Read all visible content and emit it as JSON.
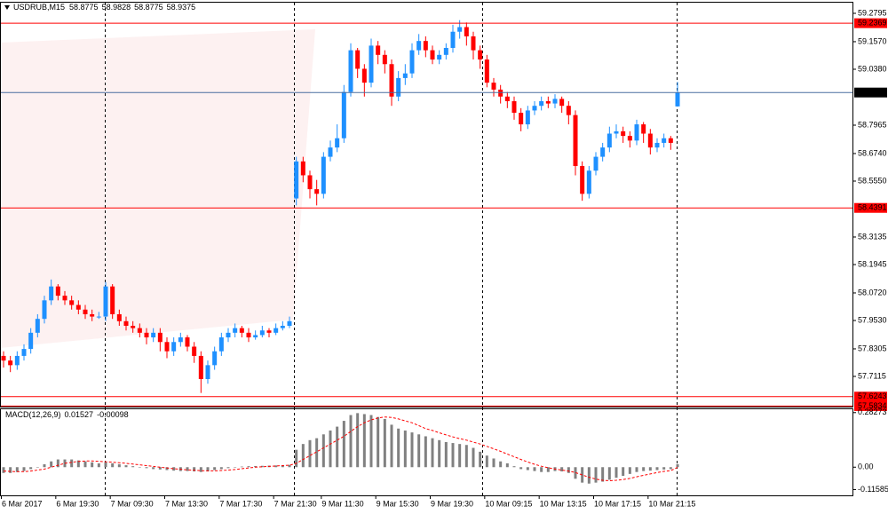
{
  "chart_data": [
    {
      "type": "candlestick",
      "title": "USDRUB,M15",
      "open": [
        57.8,
        57.78,
        57.76,
        57.8,
        57.83,
        57.9,
        57.96,
        58.04,
        58.1,
        58.06,
        58.04,
        58.02,
        58.0,
        57.98,
        57.97,
        57.97,
        58.1,
        57.98,
        57.95,
        57.93,
        57.92,
        57.9,
        57.88,
        57.9,
        57.86,
        57.82,
        57.86,
        57.88,
        57.84,
        57.8,
        57.7,
        57.76,
        57.82,
        57.88,
        57.9,
        57.92,
        57.9,
        57.88,
        57.89,
        57.91,
        57.9,
        57.92,
        57.93,
        58.48,
        58.64,
        58.58,
        58.52,
        58.5,
        58.66,
        58.7,
        58.74,
        58.94,
        59.12,
        59.04,
        58.98,
        59.14,
        59.1,
        59.06,
        58.92,
        59.0,
        59.02,
        59.12,
        59.16,
        59.12,
        59.08,
        59.1,
        59.13,
        59.2,
        59.22,
        59.18,
        59.12,
        59.08,
        58.98,
        58.95,
        58.92,
        58.9,
        58.85,
        58.8,
        58.86,
        58.88,
        58.9,
        58.89,
        58.91,
        58.88,
        58.84,
        58.62,
        58.5,
        58.6,
        58.66,
        58.7,
        58.76,
        58.77,
        58.75,
        58.73,
        58.8,
        58.76,
        58.7,
        58.72,
        58.74,
        58.8775
      ],
      "high": [
        57.82,
        57.8,
        57.82,
        57.85,
        57.92,
        57.98,
        58.06,
        58.13,
        58.11,
        58.08,
        58.06,
        58.04,
        58.02,
        58.0,
        57.99,
        58.12,
        58.11,
        58.0,
        57.97,
        57.95,
        57.94,
        57.92,
        57.92,
        57.92,
        57.88,
        57.88,
        57.9,
        57.89,
        57.86,
        57.82,
        57.78,
        57.84,
        57.9,
        57.92,
        57.94,
        57.93,
        57.92,
        57.91,
        57.93,
        57.92,
        57.94,
        57.95,
        57.97,
        58.66,
        58.66,
        58.6,
        58.56,
        58.68,
        58.73,
        58.8,
        58.97,
        59.15,
        59.13,
        59.06,
        59.17,
        59.16,
        59.12,
        59.08,
        59.03,
        59.06,
        59.15,
        59.19,
        59.18,
        59.14,
        59.12,
        59.15,
        59.23,
        59.25,
        59.24,
        59.2,
        59.14,
        59.1,
        59.0,
        58.97,
        58.94,
        58.92,
        58.87,
        58.88,
        58.9,
        58.92,
        58.92,
        58.93,
        58.92,
        58.9,
        58.86,
        58.64,
        58.62,
        58.68,
        58.72,
        58.79,
        58.8,
        58.79,
        58.77,
        58.82,
        58.81,
        58.78,
        58.74,
        58.76,
        58.75,
        58.9828
      ],
      "low": [
        57.75,
        57.73,
        57.74,
        57.78,
        57.81,
        57.88,
        57.94,
        58.02,
        58.04,
        58.02,
        58.0,
        57.98,
        57.96,
        57.95,
        57.96,
        57.95,
        57.96,
        57.93,
        57.91,
        57.9,
        57.88,
        57.85,
        57.86,
        57.82,
        57.79,
        57.8,
        57.84,
        57.82,
        57.77,
        57.64,
        57.68,
        57.74,
        57.8,
        57.86,
        57.88,
        57.88,
        57.86,
        57.87,
        57.88,
        57.88,
        57.89,
        57.91,
        57.92,
        58.45,
        58.55,
        58.48,
        58.45,
        58.48,
        58.64,
        58.68,
        58.72,
        58.92,
        59.0,
        58.92,
        58.96,
        59.06,
        59.02,
        58.88,
        58.9,
        58.97,
        59.0,
        59.1,
        59.09,
        59.06,
        59.06,
        59.08,
        59.11,
        59.17,
        59.14,
        59.08,
        59.04,
        58.96,
        58.92,
        58.89,
        58.87,
        58.82,
        58.77,
        58.78,
        58.84,
        58.86,
        58.87,
        58.87,
        58.85,
        58.8,
        58.58,
        58.47,
        58.48,
        58.58,
        58.64,
        58.68,
        58.74,
        58.72,
        58.7,
        58.71,
        58.72,
        58.67,
        58.68,
        58.7,
        58.69,
        58.8775
      ],
      "close": [
        57.78,
        57.76,
        57.8,
        57.83,
        57.9,
        57.96,
        58.04,
        58.1,
        58.06,
        58.04,
        58.02,
        58.0,
        57.98,
        57.97,
        57.97,
        58.1,
        57.98,
        57.95,
        57.93,
        57.92,
        57.9,
        57.88,
        57.9,
        57.86,
        57.82,
        57.86,
        57.88,
        57.84,
        57.8,
        57.7,
        57.76,
        57.82,
        57.88,
        57.9,
        57.92,
        57.9,
        57.88,
        57.89,
        57.91,
        57.9,
        57.92,
        57.93,
        57.95,
        58.64,
        58.58,
        58.52,
        58.5,
        58.66,
        58.7,
        58.74,
        58.94,
        59.12,
        59.04,
        58.98,
        59.14,
        59.1,
        59.06,
        58.92,
        59.0,
        59.02,
        59.12,
        59.16,
        59.12,
        59.08,
        59.1,
        59.13,
        59.2,
        59.22,
        59.18,
        59.12,
        59.08,
        58.98,
        58.95,
        58.92,
        58.9,
        58.85,
        58.8,
        58.86,
        58.88,
        58.9,
        58.89,
        58.91,
        58.88,
        58.84,
        58.62,
        58.5,
        58.6,
        58.66,
        58.7,
        58.76,
        58.77,
        58.75,
        58.73,
        58.8,
        58.76,
        58.7,
        58.72,
        58.74,
        58.72,
        58.9375
      ],
      "up_color": "#1e90ff",
      "down_color": "#ff0000",
      "ylim": [
        57.5812,
        59.3255
      ],
      "yticks": [
        59.2795,
        {
          "value": 59.157,
          "label": "59.1570"
        },
        {
          "value": 59.038,
          "label": "59.0380"
        },
        58.7965,
        {
          "value": 58.674,
          "label": "58.6740"
        },
        {
          "value": 58.555,
          "label": "58.5550"
        },
        58.3135,
        58.1945,
        {
          "value": 58.072,
          "label": "58.0720"
        },
        {
          "value": 57.953,
          "label": "57.9530"
        },
        57.8305,
        57.7115
      ],
      "hlines": [
        59.2369,
        58.4391,
        57.6243,
        57.5834
      ],
      "hline_color": "#ff0000",
      "price_line_color": "#4a6ea0",
      "xticks": [
        {
          "value": 0,
          "label": "6 Mar 2017"
        },
        {
          "value": 8,
          "label": "6 Mar 19:30"
        },
        {
          "value": 16,
          "label": "7 Mar 09:30"
        },
        {
          "value": 24,
          "label": "7 Mar 13:30"
        },
        {
          "value": 32,
          "label": "7 Mar 17:30"
        },
        {
          "value": 40,
          "label": "7 Mar 21:30"
        },
        {
          "value": 47,
          "label": "9 Mar 11:30"
        },
        {
          "value": 55,
          "label": "9 Mar 15:30"
        },
        {
          "value": 63,
          "label": "9 Mar 19:30"
        },
        {
          "value": 71,
          "label": "10 Mar 09:15"
        },
        {
          "value": 79,
          "label": "10 Mar 13:15"
        },
        {
          "value": 87,
          "label": "10 Mar 17:15"
        },
        {
          "value": 95,
          "label": "10 Mar 21:15"
        }
      ]
    },
    {
      "type": "macd",
      "title": "MACD(12,26,9)",
      "histogram": [
        -0.03,
        -0.03,
        -0.025,
        -0.02,
        -0.01,
        0.0,
        0.015,
        0.03,
        0.04,
        0.04,
        0.04,
        0.035,
        0.03,
        0.025,
        0.02,
        0.025,
        0.02,
        0.015,
        0.01,
        0.005,
        0.0,
        -0.005,
        -0.01,
        -0.012,
        -0.015,
        -0.018,
        -0.02,
        -0.02,
        -0.022,
        -0.025,
        -0.022,
        -0.015,
        -0.01,
        -0.005,
        0.0,
        0.003,
        0.005,
        0.006,
        0.007,
        0.008,
        0.009,
        0.01,
        0.012,
        0.09,
        0.12,
        0.14,
        0.15,
        0.17,
        0.19,
        0.21,
        0.24,
        0.27,
        0.28,
        0.275,
        0.27,
        0.26,
        0.25,
        0.22,
        0.2,
        0.19,
        0.18,
        0.17,
        0.16,
        0.15,
        0.14,
        0.13,
        0.125,
        0.12,
        0.115,
        0.1,
        0.08,
        0.06,
        0.045,
        0.03,
        0.02,
        0.005,
        -0.01,
        -0.015,
        -0.02,
        -0.025,
        -0.025,
        -0.02,
        -0.022,
        -0.03,
        -0.06,
        -0.08,
        -0.085,
        -0.08,
        -0.075,
        -0.065,
        -0.055,
        -0.045,
        -0.035,
        -0.025,
        -0.02,
        -0.018,
        -0.015,
        -0.012,
        -0.01,
        0.01527
      ],
      "signal": [
        -0.02,
        -0.022,
        -0.023,
        -0.023,
        -0.02,
        -0.015,
        -0.01,
        0.0,
        0.01,
        0.02,
        0.025,
        0.03,
        0.032,
        0.032,
        0.03,
        0.028,
        0.026,
        0.023,
        0.02,
        0.016,
        0.012,
        0.008,
        0.004,
        0.0,
        -0.004,
        -0.008,
        -0.011,
        -0.014,
        -0.016,
        -0.018,
        -0.019,
        -0.019,
        -0.017,
        -0.015,
        -0.012,
        -0.008,
        -0.004,
        0.0,
        0.002,
        0.004,
        0.006,
        0.008,
        0.01,
        0.02,
        0.04,
        0.06,
        0.08,
        0.1,
        0.12,
        0.14,
        0.16,
        0.185,
        0.21,
        0.23,
        0.245,
        0.255,
        0.26,
        0.258,
        0.25,
        0.24,
        0.23,
        0.215,
        0.2,
        0.19,
        0.178,
        0.167,
        0.157,
        0.148,
        0.14,
        0.13,
        0.12,
        0.108,
        0.095,
        0.082,
        0.068,
        0.054,
        0.04,
        0.027,
        0.015,
        0.005,
        -0.003,
        -0.01,
        -0.015,
        -0.02,
        -0.028,
        -0.04,
        -0.052,
        -0.062,
        -0.068,
        -0.07,
        -0.068,
        -0.064,
        -0.058,
        -0.05,
        -0.042,
        -0.035,
        -0.028,
        -0.022,
        -0.018,
        -0.00098
      ],
      "histogram_color": "#808080",
      "signal_color": "#ff0000",
      "ylim": [
        -0.146,
        0.3001
      ],
      "yticks": [
        0.28273,
        {
          "value": 0,
          "label": "0.00"
        },
        -0.11585
      ]
    }
  ]
}
